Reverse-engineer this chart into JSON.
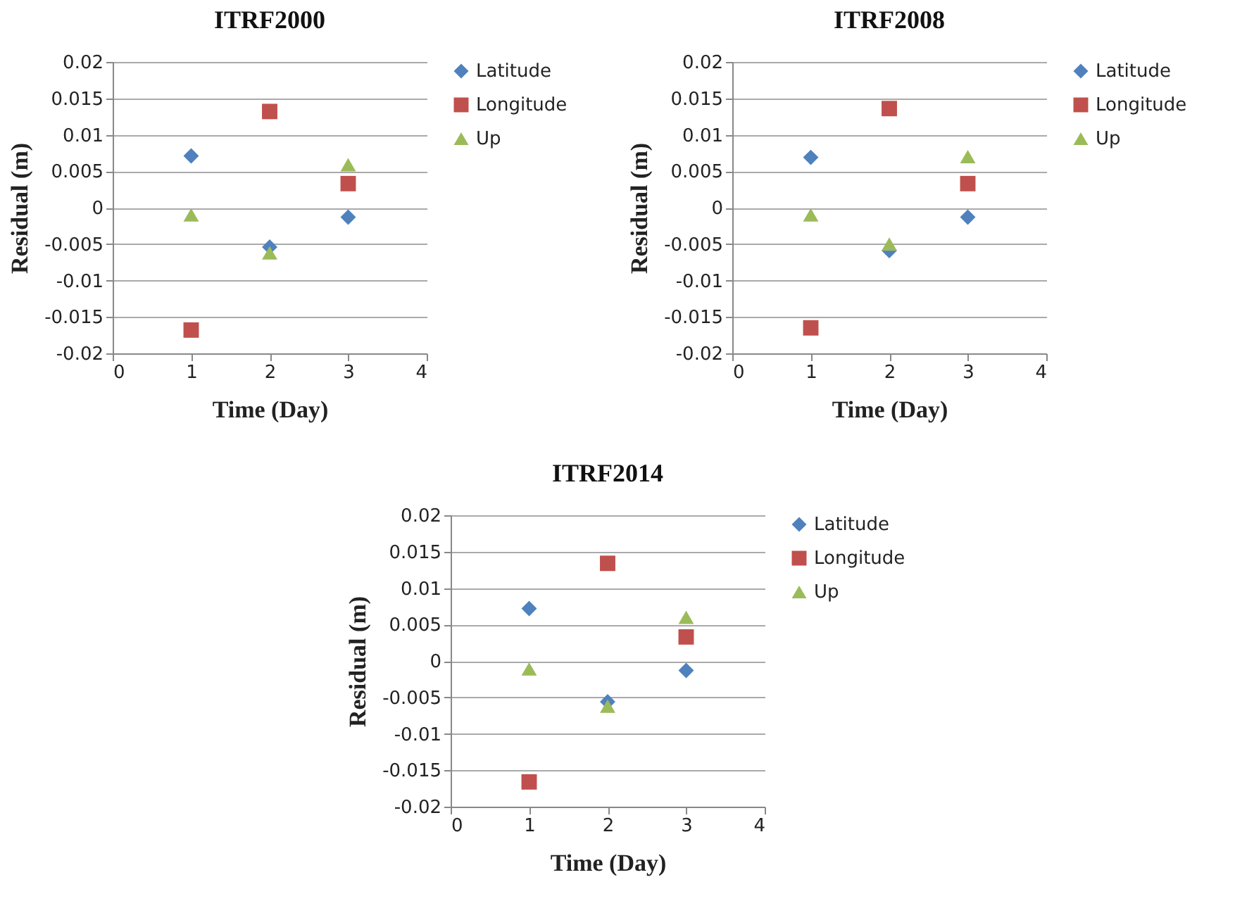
{
  "chart_data": [
    {
      "type": "scatter",
      "title": "ITRF2000",
      "xlabel": "Time (Day)",
      "ylabel": "Residual (m)",
      "x": [
        1,
        2,
        3
      ],
      "xlim": [
        0,
        4
      ],
      "xticks": [
        0,
        1,
        2,
        3,
        4
      ],
      "ylim": [
        -0.02,
        0.02
      ],
      "yticks": [
        -0.02,
        -0.015,
        -0.01,
        -0.005,
        0,
        0.005,
        0.01,
        0.015,
        0.02
      ],
      "grid": "y",
      "legend": "right",
      "series": [
        {
          "name": "Latitude",
          "color": "#4f81bd",
          "marker": "diamond",
          "values": [
            0.0071,
            -0.0054,
            -0.0013
          ]
        },
        {
          "name": "Longitude",
          "color": "#c0504d",
          "marker": "square",
          "values": [
            -0.0168,
            0.0132,
            0.0033
          ]
        },
        {
          "name": "Up",
          "color": "#9bbb59",
          "marker": "triangle",
          "values": [
            -0.001,
            -0.0062,
            0.0059
          ]
        }
      ]
    },
    {
      "type": "scatter",
      "title": "ITRF2008",
      "xlabel": "Time (Day)",
      "ylabel": "Residual (m)",
      "x": [
        1,
        2,
        3
      ],
      "xlim": [
        0,
        4
      ],
      "xticks": [
        0,
        1,
        2,
        3,
        4
      ],
      "ylim": [
        -0.02,
        0.02
      ],
      "yticks": [
        -0.02,
        -0.015,
        -0.01,
        -0.005,
        0,
        0.005,
        0.01,
        0.015,
        0.02
      ],
      "grid": "y",
      "legend": "right",
      "series": [
        {
          "name": "Latitude",
          "color": "#4f81bd",
          "marker": "diamond",
          "values": [
            0.0069,
            -0.0059,
            -0.0013
          ]
        },
        {
          "name": "Longitude",
          "color": "#c0504d",
          "marker": "square",
          "values": [
            -0.0165,
            0.0136,
            0.0033
          ]
        },
        {
          "name": "Up",
          "color": "#9bbb59",
          "marker": "triangle",
          "values": [
            -0.001,
            -0.005,
            0.007
          ]
        }
      ]
    },
    {
      "type": "scatter",
      "title": "ITRF2014",
      "xlabel": "Time (Day)",
      "ylabel": "Residual (m)",
      "x": [
        1,
        2,
        3
      ],
      "xlim": [
        0,
        4
      ],
      "xticks": [
        0,
        1,
        2,
        3,
        4
      ],
      "ylim": [
        -0.02,
        0.02
      ],
      "yticks": [
        -0.02,
        -0.015,
        -0.01,
        -0.005,
        0,
        0.005,
        0.01,
        0.015,
        0.02
      ],
      "grid": "y",
      "legend": "right",
      "series": [
        {
          "name": "Latitude",
          "color": "#4f81bd",
          "marker": "diamond",
          "values": [
            0.0072,
            -0.0056,
            -0.0013
          ]
        },
        {
          "name": "Longitude",
          "color": "#c0504d",
          "marker": "square",
          "values": [
            -0.0166,
            0.0134,
            0.0033
          ]
        },
        {
          "name": "Up",
          "color": "#9bbb59",
          "marker": "triangle",
          "values": [
            -0.0011,
            -0.0062,
            0.006
          ]
        }
      ]
    }
  ]
}
